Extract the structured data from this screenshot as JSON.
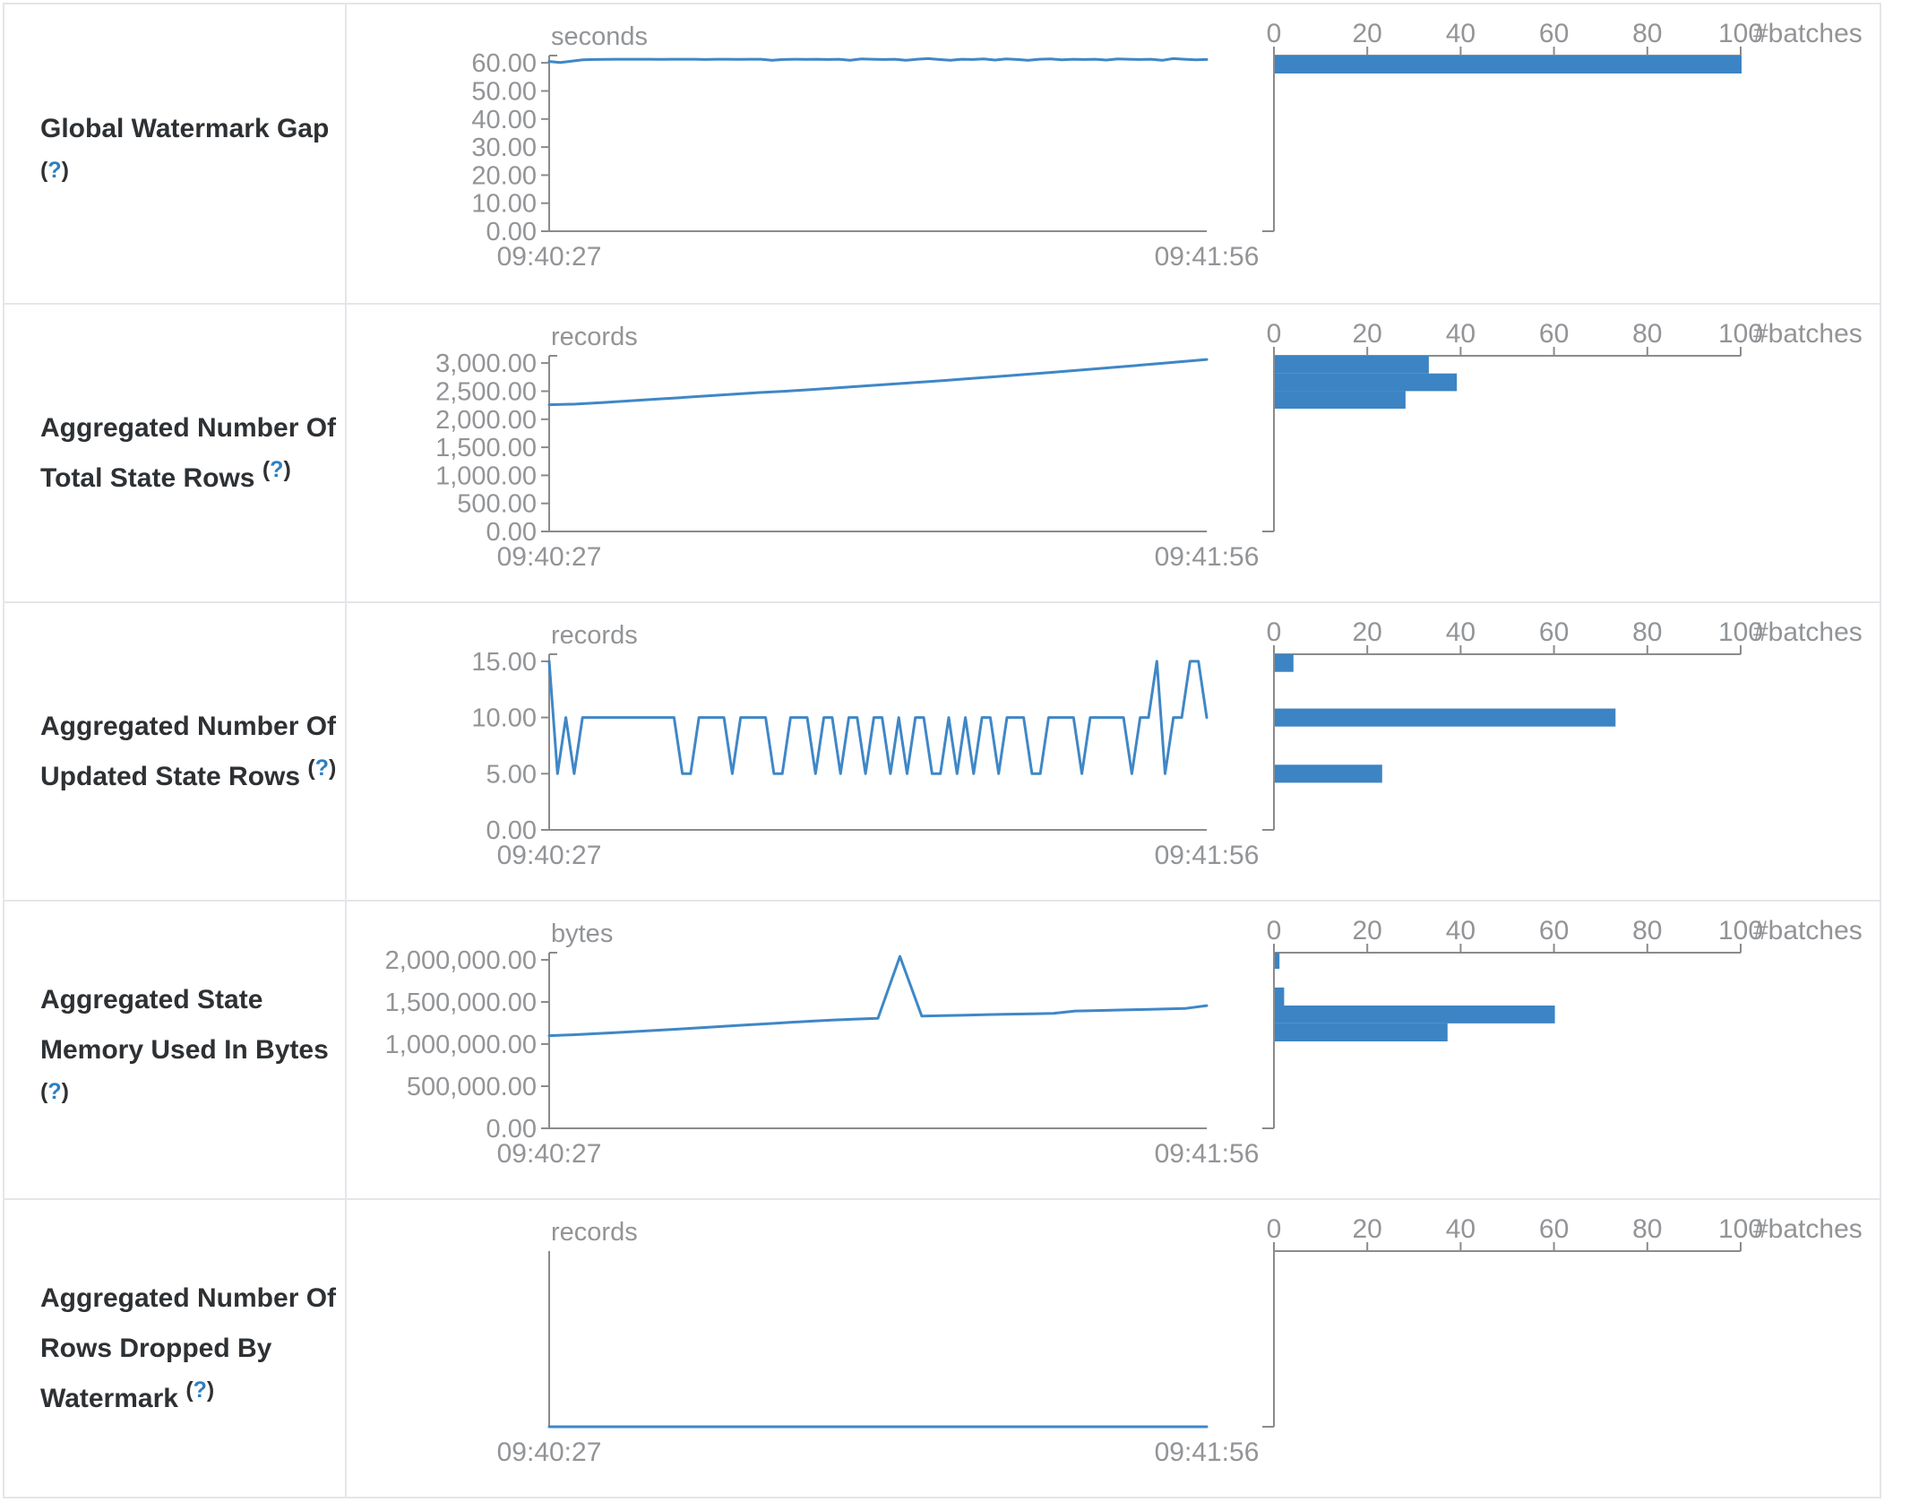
{
  "colors": {
    "accent_line": "#3f87c7",
    "accent_bar": "#3c84c4",
    "axis": "#8b8b8b",
    "tick_text": "#929497",
    "title_text": "#2e3134",
    "help_link": "#2d7fc1",
    "border": "#e3e6ea",
    "background": "#ffffff"
  },
  "help": {
    "open": "(",
    "q": "?",
    "close": ")"
  },
  "x_axis": {
    "start": "09:40:27",
    "end": "09:41:56"
  },
  "hist_axis": {
    "label": "#batches",
    "ticks": [
      0,
      20,
      40,
      60,
      80,
      100
    ],
    "max": 100
  },
  "rows": [
    {
      "title": "Global Watermark Gap",
      "unit": "seconds",
      "line_chart": 0,
      "hist_chart": 1
    },
    {
      "title": "Aggregated Number Of Total State Rows",
      "unit": "records",
      "line_chart": 2,
      "hist_chart": 3
    },
    {
      "title": "Aggregated Number Of Updated State Rows",
      "unit": "records",
      "line_chart": 4,
      "hist_chart": 5
    },
    {
      "title": "Aggregated State Memory Used In Bytes",
      "unit": "bytes",
      "line_chart": 6,
      "hist_chart": 7
    },
    {
      "title": "Aggregated Number Of Rows Dropped By Watermark",
      "unit": "records",
      "line_chart": 8,
      "hist_chart": 9
    }
  ],
  "chart_data": [
    {
      "type": "line",
      "title": "Global Watermark Gap timeline",
      "ylabel": "seconds",
      "x_start": "09:40:27",
      "x_end": "09:41:56",
      "yticks": [
        0,
        10,
        20,
        30,
        40,
        50,
        60
      ],
      "ytick_labels": [
        "0.00",
        "10.00",
        "20.00",
        "30.00",
        "40.00",
        "50.00",
        "60.00"
      ],
      "ymax": 62.6,
      "values": [
        60.5,
        60.1,
        60.6,
        61.1,
        61.2,
        61.25,
        61.3,
        61.3,
        61.3,
        61.3,
        61.25,
        61.3,
        61.3,
        61.3,
        61.2,
        61.3,
        61.3,
        61.25,
        61.3,
        61.3,
        60.9,
        61.2,
        61.3,
        61.25,
        61.3,
        61.2,
        61.3,
        60.9,
        61.4,
        61.3,
        61.2,
        61.3,
        60.9,
        61.3,
        61.5,
        61.2,
        60.9,
        61.3,
        61.2,
        61.4,
        61.0,
        61.4,
        61.2,
        60.9,
        61.3,
        61.4,
        61.1,
        61.3,
        61.2,
        61.3,
        61.0,
        61.4,
        61.3,
        61.2,
        61.3,
        60.9,
        61.5,
        61.3,
        61.1,
        61.2
      ]
    },
    {
      "type": "bar",
      "title": "Global Watermark Gap histogram",
      "orientation": "horizontal",
      "xlabel": "#batches",
      "xticks": [
        0,
        20,
        40,
        60,
        80,
        100
      ],
      "xlim": [
        0,
        100
      ],
      "bins": [
        {
          "lo": 56.2,
          "hi": 62.6,
          "count": 100
        }
      ]
    },
    {
      "type": "line",
      "title": "Aggregated Number Of Total State Rows timeline",
      "ylabel": "records",
      "x_start": "09:40:27",
      "x_end": "09:41:56",
      "yticks": [
        0,
        500,
        1000,
        1500,
        2000,
        2500,
        3000
      ],
      "ytick_labels": [
        "0.00",
        "500.00",
        "1,000.00",
        "1,500.00",
        "2,000.00",
        "2,500.00",
        "3,000.00"
      ],
      "ymax": 3130,
      "values": [
        2258,
        2270,
        2295,
        2325,
        2355,
        2385,
        2415,
        2445,
        2475,
        2500,
        2530,
        2562,
        2594,
        2626,
        2658,
        2690,
        2725,
        2760,
        2795,
        2830,
        2868,
        2906,
        2944,
        2985,
        3025,
        3065
      ]
    },
    {
      "type": "bar",
      "title": "Aggregated Number Of Total State Rows histogram",
      "orientation": "horizontal",
      "xlabel": "#batches",
      "xticks": [
        0,
        20,
        40,
        60,
        80,
        100
      ],
      "xlim": [
        0,
        100
      ],
      "bins": [
        {
          "lo": 2816,
          "hi": 3130,
          "count": 33
        },
        {
          "lo": 2502,
          "hi": 2816,
          "count": 39
        },
        {
          "lo": 2188,
          "hi": 2502,
          "count": 28
        }
      ]
    },
    {
      "type": "line",
      "title": "Aggregated Number Of Updated State Rows timeline",
      "ylabel": "records",
      "x_start": "09:40:27",
      "x_end": "09:41:56",
      "yticks": [
        0,
        5,
        10,
        15
      ],
      "ytick_labels": [
        "0.00",
        "5.00",
        "10.00",
        "15.00"
      ],
      "ymax": 15.63,
      "values": [
        15,
        5,
        10,
        5,
        10,
        10,
        10,
        10,
        10,
        10,
        10,
        10,
        10,
        10,
        10,
        10,
        5,
        5,
        10,
        10,
        10,
        10,
        5,
        10,
        10,
        10,
        10,
        5,
        5,
        10,
        10,
        10,
        5,
        10,
        10,
        5,
        10,
        10,
        5,
        10,
        10,
        5,
        10,
        5,
        10,
        10,
        5,
        5,
        10,
        5,
        10,
        5,
        10,
        10,
        5,
        10,
        10,
        10,
        5,
        5,
        10,
        10,
        10,
        10,
        5,
        10,
        10,
        10,
        10,
        10,
        5,
        10,
        10,
        15,
        5,
        10,
        10,
        15,
        15,
        10
      ]
    },
    {
      "type": "bar",
      "title": "Aggregated Number Of Updated State Rows histogram",
      "orientation": "horizontal",
      "xlabel": "#batches",
      "xticks": [
        0,
        20,
        40,
        60,
        80,
        100
      ],
      "xlim": [
        0,
        100
      ],
      "bins": [
        {
          "lo": 14.06,
          "hi": 15.63,
          "count": 4
        },
        {
          "lo": 9.2,
          "hi": 10.8,
          "count": 73
        },
        {
          "lo": 4.2,
          "hi": 5.8,
          "count": 23
        }
      ]
    },
    {
      "type": "line",
      "title": "Aggregated State Memory Used In Bytes timeline",
      "ylabel": "bytes",
      "x_start": "09:40:27",
      "x_end": "09:41:56",
      "yticks": [
        0,
        500000,
        1000000,
        1500000,
        2000000
      ],
      "ytick_labels": [
        "0.00",
        "500,000.00",
        "1,000,000.00",
        "1,500,000.00",
        "2,000,000.00"
      ],
      "ymax": 2085000,
      "values": [
        1100000,
        1110000,
        1122000,
        1135000,
        1150000,
        1165000,
        1180000,
        1196000,
        1212000,
        1228000,
        1243000,
        1258000,
        1272000,
        1286000,
        1297000,
        1305000,
        2040000,
        1332000,
        1338000,
        1344000,
        1350000,
        1355000,
        1360000,
        1365000,
        1392000,
        1398000,
        1404000,
        1410000,
        1416000,
        1422000,
        1456000
      ]
    },
    {
      "type": "bar",
      "title": "Aggregated State Memory Used In Bytes histogram",
      "orientation": "horizontal",
      "xlabel": "#batches",
      "xticks": [
        0,
        20,
        40,
        60,
        80,
        100
      ],
      "xlim": [
        0,
        100
      ],
      "bins": [
        {
          "lo": 1894000,
          "hi": 2085000,
          "count": 1
        },
        {
          "lo": 1457000,
          "hi": 1671000,
          "count": 2
        },
        {
          "lo": 1245000,
          "hi": 1457000,
          "count": 60
        },
        {
          "lo": 1032000,
          "hi": 1245000,
          "count": 37
        }
      ]
    },
    {
      "type": "line",
      "title": "Aggregated Number Of Rows Dropped By Watermark timeline",
      "ylabel": "records",
      "x_start": "09:40:27",
      "x_end": "09:41:56",
      "yticks": [],
      "ytick_labels": [],
      "ymax": 1,
      "values": [
        0,
        0,
        0,
        0,
        0,
        0,
        0,
        0,
        0,
        0
      ]
    },
    {
      "type": "bar",
      "title": "Aggregated Number Of Rows Dropped By Watermark histogram",
      "orientation": "horizontal",
      "xlabel": "#batches",
      "xticks": [
        0,
        20,
        40,
        60,
        80,
        100
      ],
      "xlim": [
        0,
        100
      ],
      "bins": []
    }
  ]
}
